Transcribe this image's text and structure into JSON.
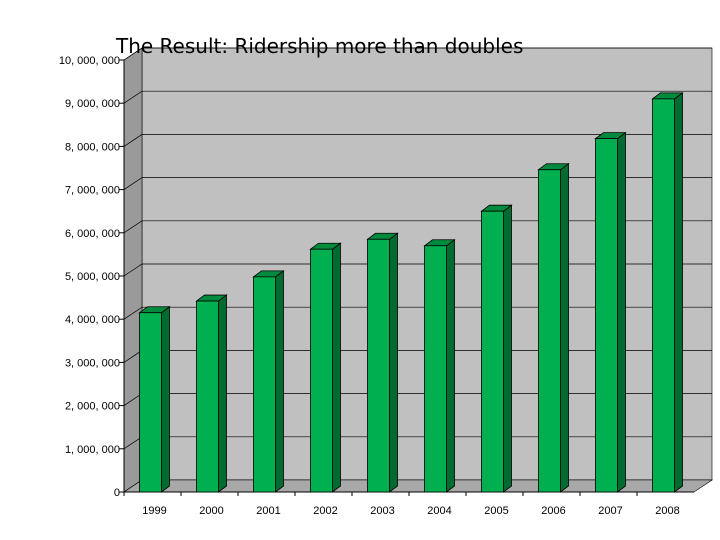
{
  "colors": {
    "background": "#ffffff",
    "wall": "#c0c0c0",
    "wall_side": "#9a9a9a",
    "floor": "#a8a8a8",
    "gridline": "#000000",
    "bar_front": "#00b050",
    "bar_side": "#006b30",
    "bar_top": "#008a3e"
  },
  "chart_data": {
    "type": "bar",
    "title": "The Result: Ridership more than doubles",
    "xlabel": "",
    "ylabel": "",
    "grid": true,
    "ylim": [
      0,
      10000000
    ],
    "y_ticks": [
      {
        "value": 0,
        "label": "0"
      },
      {
        "value": 1000000,
        "label": "1, 000, 000"
      },
      {
        "value": 2000000,
        "label": "2, 000, 000"
      },
      {
        "value": 3000000,
        "label": "3, 000, 000"
      },
      {
        "value": 4000000,
        "label": "4, 000, 000"
      },
      {
        "value": 5000000,
        "label": "5, 000, 000"
      },
      {
        "value": 6000000,
        "label": "6, 000, 000"
      },
      {
        "value": 7000000,
        "label": "7, 000, 000"
      },
      {
        "value": 8000000,
        "label": "8, 000, 000"
      },
      {
        "value": 9000000,
        "label": "9, 000, 000"
      },
      {
        "value": 10000000,
        "label": "10, 000, 000"
      }
    ],
    "categories": [
      "1999",
      "2000",
      "2001",
      "2002",
      "2003",
      "2004",
      "2005",
      "2006",
      "2007",
      "2008"
    ],
    "values": [
      4150000,
      4420000,
      4980000,
      5620000,
      5850000,
      5700000,
      6500000,
      7460000,
      8180000,
      9100000
    ]
  }
}
